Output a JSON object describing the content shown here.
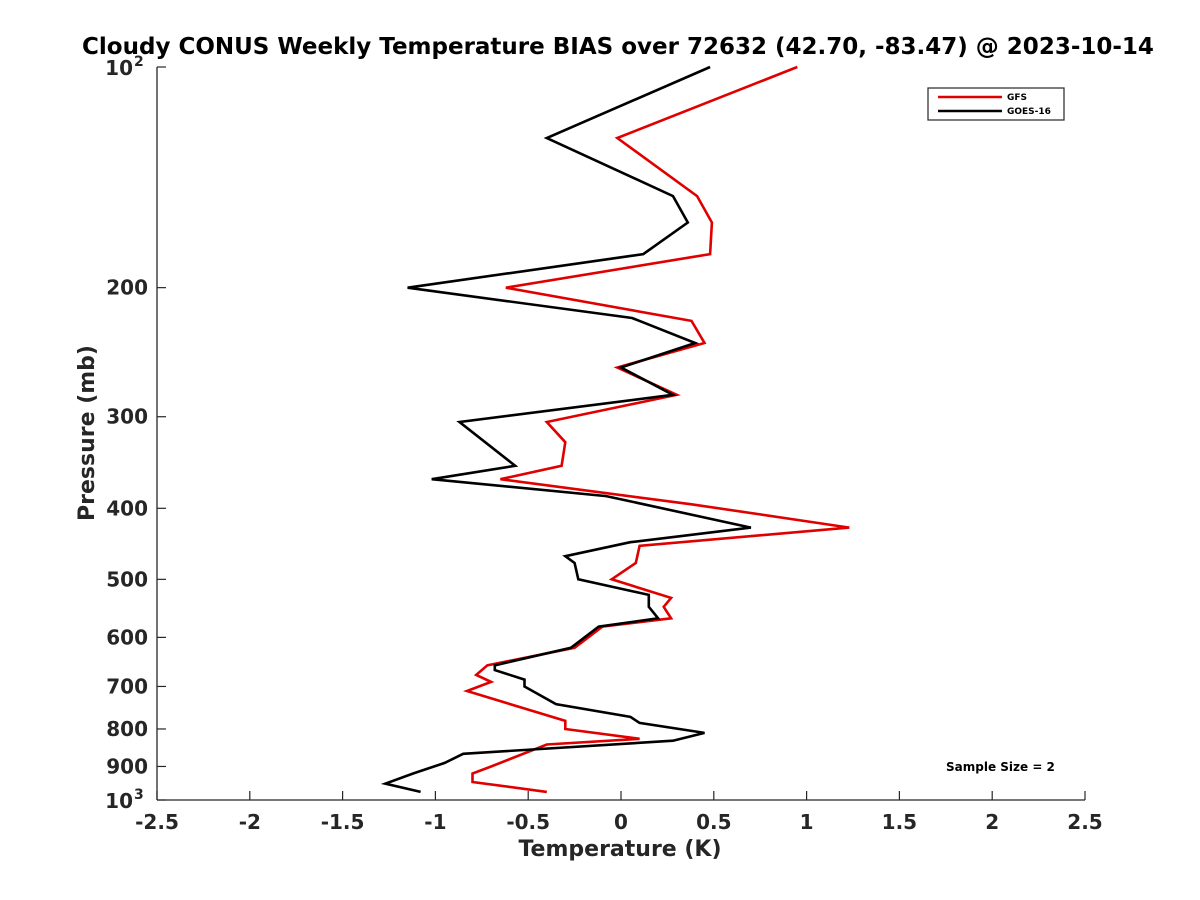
{
  "chart_data": {
    "type": "line",
    "title": "Cloudy CONUS Weekly Temperature BIAS over 72632 (42.70, -83.47) @ 2023-10-14",
    "xlabel": "Temperature (K)",
    "ylabel": "Pressure (mb)",
    "xlim": [
      -2.5,
      2.5
    ],
    "ylim": [
      100,
      1000
    ],
    "y_scale": "log",
    "y_reversed": true,
    "x_ticks": [
      "-2.5",
      "-2",
      "-1.5",
      "-1",
      "-0.5",
      "0",
      "0.5",
      "1",
      "1.5",
      "2",
      "2.5"
    ],
    "x_tick_values": [
      -2.5,
      -2,
      -1.5,
      -1,
      -0.5,
      0,
      0.5,
      1,
      1.5,
      2,
      2.5
    ],
    "y_ticks": [
      {
        "value": 100,
        "base": "10",
        "exp": "2"
      },
      {
        "value": 200,
        "label": "200"
      },
      {
        "value": 300,
        "label": "300"
      },
      {
        "value": 400,
        "label": "400"
      },
      {
        "value": 500,
        "label": "500"
      },
      {
        "value": 600,
        "label": "600"
      },
      {
        "value": 700,
        "label": "700"
      },
      {
        "value": 800,
        "label": "800"
      },
      {
        "value": 900,
        "label": "900"
      },
      {
        "value": 1000,
        "base": "10",
        "exp": "3"
      }
    ],
    "grid": false,
    "legend_position": "top-right",
    "annotation": "Sample Size = 2",
    "series": [
      {
        "name": "GFS",
        "color": "#e00000",
        "points": [
          {
            "x": 0.95,
            "y": 100
          },
          {
            "x": -0.02,
            "y": 125
          },
          {
            "x": 0.41,
            "y": 150
          },
          {
            "x": 0.49,
            "y": 163
          },
          {
            "x": 0.48,
            "y": 180
          },
          {
            "x": -0.62,
            "y": 200
          },
          {
            "x": 0.38,
            "y": 222
          },
          {
            "x": 0.45,
            "y": 238
          },
          {
            "x": -0.02,
            "y": 257
          },
          {
            "x": 0.3,
            "y": 280
          },
          {
            "x": -0.4,
            "y": 305
          },
          {
            "x": -0.3,
            "y": 325
          },
          {
            "x": -0.32,
            "y": 350
          },
          {
            "x": -0.65,
            "y": 365
          },
          {
            "x": 0.38,
            "y": 395
          },
          {
            "x": 1.23,
            "y": 425
          },
          {
            "x": 0.1,
            "y": 450
          },
          {
            "x": 0.08,
            "y": 475
          },
          {
            "x": -0.05,
            "y": 500
          },
          {
            "x": 0.27,
            "y": 530
          },
          {
            "x": 0.23,
            "y": 545
          },
          {
            "x": 0.27,
            "y": 565
          },
          {
            "x": -0.1,
            "y": 580
          },
          {
            "x": -0.25,
            "y": 620
          },
          {
            "x": -0.72,
            "y": 655
          },
          {
            "x": -0.78,
            "y": 675
          },
          {
            "x": -0.7,
            "y": 690
          },
          {
            "x": -0.83,
            "y": 710
          },
          {
            "x": -0.3,
            "y": 780
          },
          {
            "x": -0.3,
            "y": 800
          },
          {
            "x": 0.1,
            "y": 825
          },
          {
            "x": -0.4,
            "y": 840
          },
          {
            "x": -0.7,
            "y": 900
          },
          {
            "x": -0.8,
            "y": 920
          },
          {
            "x": -0.8,
            "y": 945
          },
          {
            "x": -0.4,
            "y": 975
          }
        ]
      },
      {
        "name": "GOES-16",
        "color": "#000000",
        "points": [
          {
            "x": 0.48,
            "y": 100
          },
          {
            "x": -0.4,
            "y": 125
          },
          {
            "x": 0.28,
            "y": 150
          },
          {
            "x": 0.36,
            "y": 163
          },
          {
            "x": 0.12,
            "y": 180
          },
          {
            "x": -1.15,
            "y": 200
          },
          {
            "x": 0.06,
            "y": 220
          },
          {
            "x": 0.4,
            "y": 238
          },
          {
            "x": 0.0,
            "y": 257
          },
          {
            "x": 0.28,
            "y": 280
          },
          {
            "x": -0.87,
            "y": 305
          },
          {
            "x": -0.57,
            "y": 350
          },
          {
            "x": -1.02,
            "y": 365
          },
          {
            "x": -0.08,
            "y": 385
          },
          {
            "x": 0.7,
            "y": 425
          },
          {
            "x": 0.05,
            "y": 445
          },
          {
            "x": -0.3,
            "y": 465
          },
          {
            "x": -0.25,
            "y": 475
          },
          {
            "x": -0.23,
            "y": 500
          },
          {
            "x": 0.15,
            "y": 525
          },
          {
            "x": 0.15,
            "y": 545
          },
          {
            "x": 0.2,
            "y": 565
          },
          {
            "x": -0.12,
            "y": 580
          },
          {
            "x": -0.27,
            "y": 620
          },
          {
            "x": -0.68,
            "y": 655
          },
          {
            "x": -0.68,
            "y": 665
          },
          {
            "x": -0.52,
            "y": 685
          },
          {
            "x": -0.52,
            "y": 700
          },
          {
            "x": -0.35,
            "y": 740
          },
          {
            "x": 0.05,
            "y": 770
          },
          {
            "x": 0.1,
            "y": 785
          },
          {
            "x": 0.45,
            "y": 810
          },
          {
            "x": 0.28,
            "y": 830
          },
          {
            "x": -0.85,
            "y": 865
          },
          {
            "x": -0.95,
            "y": 890
          },
          {
            "x": -1.12,
            "y": 920
          },
          {
            "x": -1.27,
            "y": 950
          },
          {
            "x": -1.08,
            "y": 975
          }
        ]
      }
    ]
  }
}
